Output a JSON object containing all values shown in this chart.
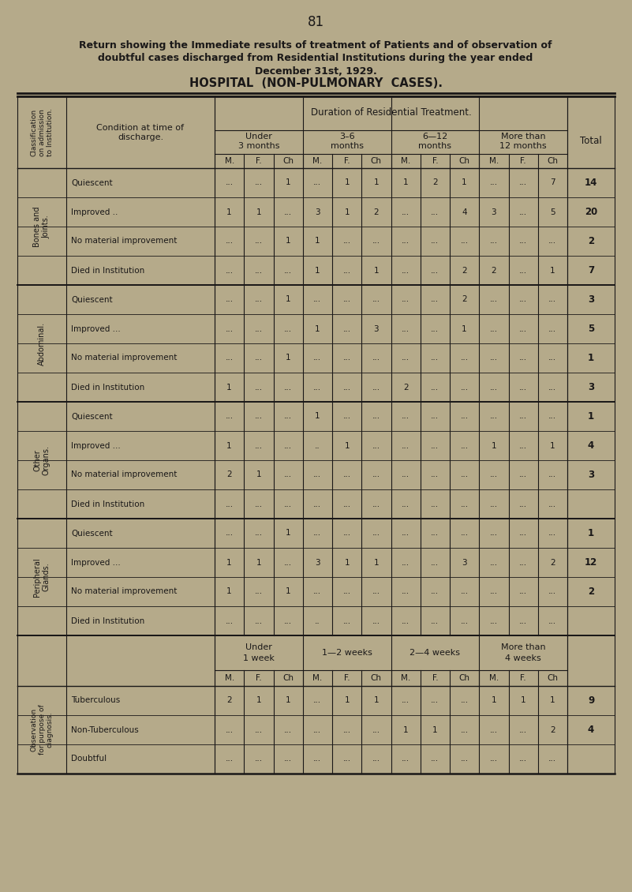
{
  "page_number": "81",
  "title_line1": "Return showing the Immediate results of treatment of Patients and of observation of",
  "title_line2": "doubtful cases discharged from Residential Institutions during the year ended",
  "title_line3": "December 31st, 1929.",
  "title_line4": "HOSPITAL  (NON-PULMONARY  CASES).",
  "bg_color": "#b5aa8a",
  "text_color": "#1a1818",
  "section1_label": "Bones and\nJoints.",
  "section2_label": "Abdominal.",
  "section3_label": "Other\nOrgans.",
  "section4_label": "Peripheral\nGlands.",
  "section5_label": "Observation\nfor purpose of\ndiagnosis.",
  "col_header_class": "Classification\non admission\nto Institution.",
  "col_condition": "Condition at time of\ndischarge.",
  "col_duration": "Duration of Residential Treatment.",
  "col_under3": "Under\n3 months",
  "col_3to6": "3–6\nmonths",
  "col_6to12": "6—12\nmonths",
  "col_morethan12": "More than\n12 months",
  "col_total": "Total",
  "subheaders": [
    "M.",
    "F.",
    "Ch",
    "M.",
    "F.",
    "Ch",
    "M.",
    "F.",
    "Ch",
    "M.",
    "F.",
    "Ch"
  ],
  "rows": [
    {
      "section": 1,
      "condition": "Quiescent",
      "dots": "   ...",
      "values": [
        "...",
        "...",
        "1",
        "...",
        "1",
        "1",
        "1",
        "2",
        "1",
        "...",
        "...",
        "7"
      ],
      "total": "14"
    },
    {
      "section": 1,
      "condition": "Improved ..",
      "dots": "   ...",
      "values": [
        "1",
        "1",
        "...",
        "3",
        "1",
        "2",
        "...",
        "...",
        "4",
        "3",
        "...",
        "5"
      ],
      "total": "20"
    },
    {
      "section": 1,
      "condition": "No material improvement",
      "dots": "",
      "values": [
        "...",
        "...",
        "1",
        "1",
        "...",
        "...",
        "...",
        "...",
        "...",
        "...",
        "...",
        "..."
      ],
      "total": "2"
    },
    {
      "section": 1,
      "condition": "Died in Institution",
      "dots": "   ...",
      "values": [
        "...",
        "...",
        "...",
        "1",
        "...",
        "1",
        "...",
        "...",
        "2",
        "2",
        "...",
        "1"
      ],
      "total": "7"
    },
    {
      "section": 2,
      "condition": "Quiescent",
      "dots": "   ...",
      "values": [
        "...",
        "...",
        "1",
        "...",
        "...",
        "...",
        "...",
        "...",
        "2",
        "...",
        "...",
        "..."
      ],
      "total": "3"
    },
    {
      "section": 2,
      "condition": "Improved ...",
      "dots": "   ...",
      "values": [
        "...",
        "...",
        "...",
        "1",
        "...",
        "3",
        "...",
        "...",
        "1",
        "...",
        "...",
        "..."
      ],
      "total": "5"
    },
    {
      "section": 2,
      "condition": "No material improvement",
      "dots": "",
      "values": [
        "...",
        "...",
        "1",
        "...",
        "...",
        "...",
        "...",
        "...",
        "...",
        "...",
        "...",
        "..."
      ],
      "total": "1"
    },
    {
      "section": 2,
      "condition": "Died in Institution",
      "dots": "   ...",
      "values": [
        "1",
        "...",
        "...",
        "...",
        "...",
        "...",
        "2",
        "...",
        "...",
        "...",
        "...",
        "..."
      ],
      "total": "3"
    },
    {
      "section": 3,
      "condition": "Quiescent",
      "dots": "   ..",
      "values": [
        "...",
        "...",
        "...",
        "1",
        "...",
        "...",
        "...",
        "...",
        "...",
        "...",
        "...",
        "..."
      ],
      "total": "1"
    },
    {
      "section": 3,
      "condition": "Improved ...",
      "dots": "   ...",
      "values": [
        "1",
        "...",
        "...",
        "..",
        "1",
        "...",
        "...",
        "...",
        "...",
        "1",
        "...",
        "1"
      ],
      "total": "4"
    },
    {
      "section": 3,
      "condition": "No material improvement",
      "dots": "",
      "values": [
        "2",
        "1",
        "...",
        "...",
        "...",
        "...",
        "...",
        "...",
        "...",
        "...",
        "...",
        "..."
      ],
      "total": "3"
    },
    {
      "section": 3,
      "condition": "Died in Institution",
      "dots": "   ...",
      "values": [
        "...",
        "...",
        "...",
        "...",
        "...",
        "...",
        "...",
        "...",
        "...",
        "...",
        "...",
        "..."
      ],
      "total": ""
    },
    {
      "section": 4,
      "condition": "Quiescent",
      "dots": "   ..",
      "values": [
        "...",
        "...",
        "1",
        "...",
        "...",
        "...",
        "...",
        "...",
        "...",
        "...",
        "...",
        "..."
      ],
      "total": "1"
    },
    {
      "section": 4,
      "condition": "Improved ...",
      "dots": "   ...",
      "values": [
        "1",
        "1",
        "...",
        "3",
        "1",
        "1",
        "...",
        "...",
        "3",
        "...",
        "...",
        "2"
      ],
      "total": "12"
    },
    {
      "section": 4,
      "condition": "No material improvement",
      "dots": "",
      "values": [
        "1",
        "...",
        "1",
        "...",
        "...",
        "...",
        "...",
        "...",
        "...",
        "...",
        "...",
        "..."
      ],
      "total": "2"
    },
    {
      "section": 4,
      "condition": "Died in Institution",
      "dots": "   ...",
      "values": [
        "...",
        "...",
        "...",
        "..",
        "...",
        "...",
        "...",
        "...",
        "...",
        "...",
        "...",
        "..."
      ],
      "total": ""
    }
  ],
  "obs_header_under1": "Under\n1 week",
  "obs_header_1to2": "1—2 weeks",
  "obs_header_2to4": "2—4 weeks",
  "obs_header_morethan4": "More than\n4 weeks",
  "obs_rows": [
    {
      "condition": "Tuberculous",
      "dots": "   ...",
      "values": [
        "2",
        "1",
        "1",
        "...",
        "1",
        "1",
        "...",
        "...",
        "...",
        "1",
        "1",
        "1"
      ],
      "total": "9"
    },
    {
      "condition": "Non-Tuberculous",
      "dots": "   ...",
      "values": [
        "...",
        "...",
        "...",
        "...",
        "...",
        "...",
        "1",
        "1",
        "...",
        "...",
        "...",
        "2"
      ],
      "total": "4"
    },
    {
      "condition": "Doubtful",
      "dots": "   ...",
      "values": [
        "...",
        "...",
        "...",
        "...",
        "...",
        "...",
        "...",
        "...",
        "...",
        "...",
        "...",
        "..."
      ],
      "total": ""
    }
  ]
}
